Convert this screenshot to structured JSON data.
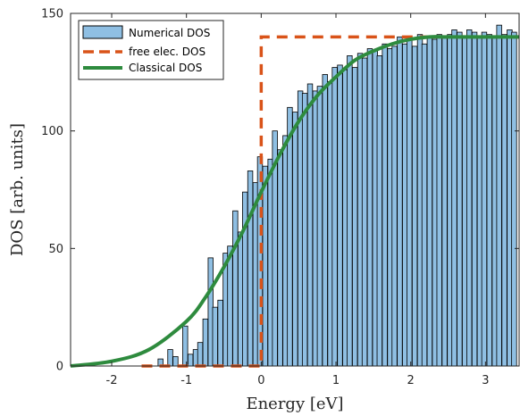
{
  "chart_data": {
    "type": "bar",
    "xlabel": "Energy [eV]",
    "ylabel": "DOS [arb. units]",
    "xlim": [
      -2.55,
      3.45
    ],
    "ylim": [
      0,
      150
    ],
    "xticks": [
      -2,
      -1,
      0,
      1,
      2,
      3
    ],
    "yticks": [
      0,
      50,
      100,
      150
    ],
    "grid": false,
    "legend_position": "top-left",
    "bin_width": 0.0667,
    "series": [
      {
        "name": "Numerical DOS",
        "kind": "histogram",
        "color": "#8fbfe3",
        "edge_color": "#000000",
        "bin_left_edges": [
          -1.38,
          -1.31,
          -1.25,
          -1.18,
          -1.11,
          -1.05,
          -0.98,
          -0.91,
          -0.85,
          -0.78,
          -0.71,
          -0.65,
          -0.58,
          -0.51,
          -0.45,
          -0.38,
          -0.31,
          -0.25,
          -0.18,
          -0.11,
          -0.05,
          0.02,
          0.09,
          0.15,
          0.22,
          0.29,
          0.35,
          0.42,
          0.49,
          0.55,
          0.62,
          0.69,
          0.75,
          0.82,
          0.89,
          0.95,
          1.02,
          1.09,
          1.15,
          1.22,
          1.29,
          1.35,
          1.42,
          1.49,
          1.55,
          1.62,
          1.69,
          1.75,
          1.82,
          1.89,
          1.95,
          2.02,
          2.09,
          2.15,
          2.22,
          2.29,
          2.35,
          2.42,
          2.49,
          2.55,
          2.62,
          2.69,
          2.75,
          2.82,
          2.89,
          2.95,
          3.02,
          3.09,
          3.15,
          3.22,
          3.29,
          3.35
        ],
        "values": [
          3,
          0,
          7,
          4,
          0,
          17,
          5,
          7,
          10,
          20,
          46,
          25,
          28,
          48,
          51,
          66,
          57,
          74,
          83,
          78,
          89,
          85,
          88,
          100,
          92,
          98,
          110,
          108,
          117,
          116,
          120,
          117,
          119,
          124,
          121,
          127,
          128,
          126,
          132,
          127,
          133,
          131,
          135,
          134,
          132,
          137,
          135,
          136,
          140,
          137,
          139,
          136,
          141,
          137,
          140,
          139,
          141,
          140,
          141,
          143,
          142,
          140,
          143,
          142,
          140,
          142,
          141,
          140,
          145,
          141,
          143,
          142
        ]
      },
      {
        "name": "free elec. DOS",
        "kind": "line",
        "style": "dashed",
        "color": "#d95319",
        "x": [
          -1.6,
          0,
          0,
          3.45
        ],
        "y": [
          0,
          0,
          140,
          140
        ]
      },
      {
        "name": "Classical DOS",
        "kind": "line",
        "style": "solid",
        "color": "#2e8b3e",
        "x": [
          -2.55,
          -2.0,
          -1.5,
          -1.0,
          -0.75,
          -0.5,
          -0.25,
          0,
          0.25,
          0.5,
          0.75,
          1.0,
          1.25,
          1.5,
          1.75,
          2.0,
          2.25,
          2.5,
          3.0,
          3.45
        ],
        "y": [
          0,
          2,
          7,
          19,
          29,
          42,
          57,
          74,
          90,
          104,
          115,
          123,
          130,
          134,
          137,
          139,
          140,
          140,
          140,
          140
        ]
      }
    ]
  }
}
